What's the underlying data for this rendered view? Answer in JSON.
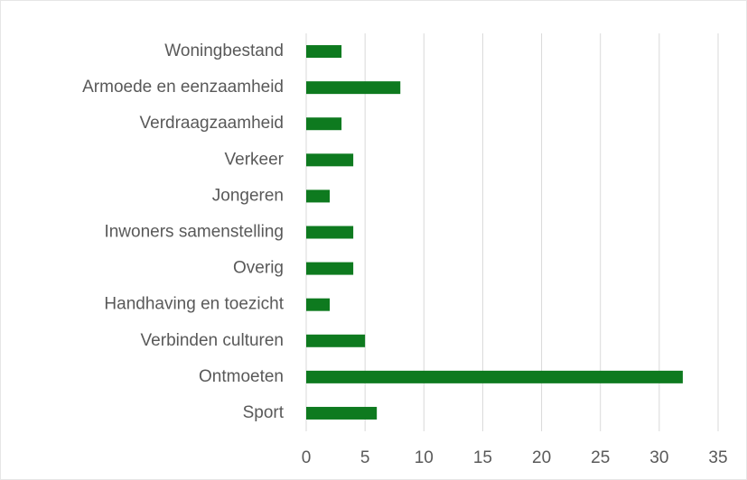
{
  "chart_data": {
    "type": "bar",
    "orientation": "horizontal",
    "categories": [
      "Woningbestand",
      "Armoede en eenzaamheid",
      "Verdraagzaamheid",
      "Verkeer",
      "Jongeren",
      "Inwoners samenstelling",
      "Overig",
      "Handhaving en toezicht",
      "Verbinden culturen",
      "Ontmoeten",
      "Sport"
    ],
    "values": [
      3,
      8,
      3,
      4,
      2,
      4,
      4,
      2,
      5,
      32,
      6
    ],
    "color": "#0e7a1f",
    "xlim": [
      0,
      35
    ],
    "xticks": [
      0,
      5,
      10,
      15,
      20,
      25,
      30,
      35
    ],
    "grid": true
  }
}
